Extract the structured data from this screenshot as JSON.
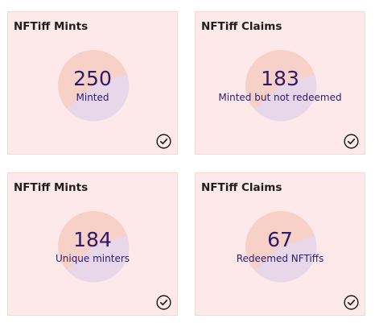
{
  "cards": [
    {
      "title": "NFTiff Mints",
      "value": "250",
      "label": "Minted",
      "status_icon": "check-circle-icon"
    },
    {
      "title": "NFTiff Claims",
      "value": "183",
      "label": "Minted but not redeemed",
      "status_icon": "check-circle-icon"
    },
    {
      "title": "NFTiff Mints",
      "value": "184",
      "label": "Unique minters",
      "status_icon": "check-circle-icon"
    },
    {
      "title": "NFTiff Claims",
      "value": "67",
      "label": "Redeemed NFTiffs",
      "status_icon": "check-circle-icon"
    }
  ],
  "colors": {
    "card_background": "#fde9e9",
    "donut_primary": "#f7d1c7",
    "donut_secondary": "#e7d7e9",
    "metric_text": "#2c1a6b",
    "title_text": "#1f1f1f",
    "check_icon": "#1a1a1a"
  }
}
